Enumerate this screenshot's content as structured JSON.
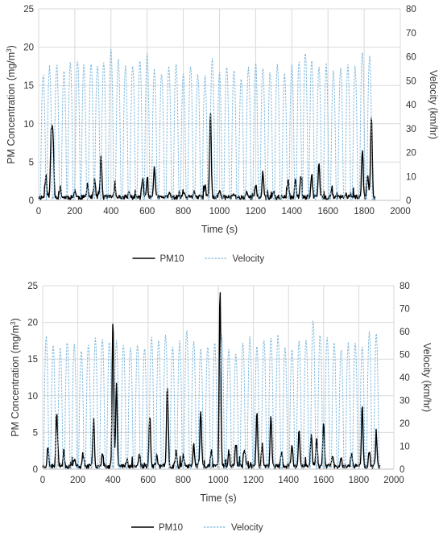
{
  "chart_data": [
    {
      "type": "line",
      "x_label": "Time (s)",
      "y_label_left_parts": [
        "PM Concentration (mg/m",
        "3",
        ")"
      ],
      "y_label_right": "Velocity (km/hr)",
      "x_range": [
        0,
        2000
      ],
      "x_ticks": [
        0,
        200,
        400,
        600,
        800,
        1000,
        1200,
        1400,
        1600,
        1800,
        2000
      ],
      "y_left_range": [
        0,
        25
      ],
      "y_left_ticks": [
        0,
        5,
        10,
        15,
        20,
        25
      ],
      "y_right_range": [
        0,
        80
      ],
      "y_right_ticks": [
        0,
        10,
        20,
        30,
        40,
        50,
        60,
        70,
        80
      ],
      "grid": true,
      "legend_position": "bottom",
      "series": [
        {
          "name": "PM10",
          "axis": "left",
          "color": "#000000",
          "style": "solid",
          "duration": 1860,
          "seed": 11,
          "peaks": [
            [
              40,
              3.0
            ],
            [
              70,
              8.7
            ],
            [
              80,
              7.2
            ],
            [
              120,
              1.2
            ],
            [
              200,
              1.0
            ],
            [
              270,
              1.7
            ],
            [
              310,
              2.3
            ],
            [
              345,
              5.5
            ],
            [
              420,
              1.2
            ],
            [
              500,
              0.8
            ],
            [
              575,
              2.5
            ],
            [
              600,
              2.3
            ],
            [
              640,
              4.2
            ],
            [
              720,
              0.5
            ],
            [
              800,
              0.8
            ],
            [
              860,
              0.9
            ],
            [
              920,
              1.5
            ],
            [
              950,
              11.2
            ],
            [
              1000,
              0.8
            ],
            [
              1080,
              0.5
            ],
            [
              1150,
              0.8
            ],
            [
              1200,
              1.6
            ],
            [
              1240,
              3.2
            ],
            [
              1300,
              0.7
            ],
            [
              1380,
              2.0
            ],
            [
              1420,
              2.5
            ],
            [
              1450,
              3.0
            ],
            [
              1510,
              3.0
            ],
            [
              1550,
              4.5
            ],
            [
              1620,
              1.0
            ],
            [
              1700,
              0.6
            ],
            [
              1790,
              6.0
            ],
            [
              1820,
              3.0
            ],
            [
              1840,
              10.6
            ]
          ]
        },
        {
          "name": "Velocity",
          "axis": "right",
          "color": "#7fb8dc",
          "style": "dashed",
          "duration": 1860,
          "seed": 5,
          "peaks": [
            [
              25,
              52
            ],
            [
              60,
              55
            ],
            [
              100,
              56
            ],
            [
              140,
              54
            ],
            [
              175,
              57
            ],
            [
              215,
              58
            ],
            [
              250,
              56
            ],
            [
              290,
              57
            ],
            [
              325,
              56
            ],
            [
              360,
              57
            ],
            [
              400,
              63
            ],
            [
              440,
              58
            ],
            [
              480,
              55
            ],
            [
              520,
              56
            ],
            [
              560,
              58
            ],
            [
              600,
              61
            ],
            [
              640,
              54
            ],
            [
              680,
              52
            ],
            [
              720,
              55
            ],
            [
              760,
              57
            ],
            [
              800,
              53
            ],
            [
              840,
              55
            ],
            [
              880,
              52
            ],
            [
              920,
              51
            ],
            [
              960,
              58
            ],
            [
              1000,
              53
            ],
            [
              1040,
              55
            ],
            [
              1080,
              54
            ],
            [
              1120,
              50
            ],
            [
              1160,
              55
            ],
            [
              1200,
              57
            ],
            [
              1240,
              55
            ],
            [
              1280,
              53
            ],
            [
              1320,
              56
            ],
            [
              1360,
              52
            ],
            [
              1400,
              56
            ],
            [
              1440,
              57
            ],
            [
              1475,
              61
            ],
            [
              1510,
              58
            ],
            [
              1550,
              55
            ],
            [
              1590,
              56
            ],
            [
              1630,
              53
            ],
            [
              1670,
              55
            ],
            [
              1710,
              56
            ],
            [
              1750,
              55
            ],
            [
              1790,
              61
            ],
            [
              1830,
              59
            ]
          ]
        }
      ]
    },
    {
      "type": "line",
      "x_label": "Time (s)",
      "y_label_left_parts": [
        "PM Concentration (mg/m",
        "3",
        ")"
      ],
      "y_label_right": "Velocity (km/hr)",
      "x_range": [
        0,
        2000
      ],
      "x_ticks": [
        0,
        200,
        400,
        600,
        800,
        1000,
        1200,
        1400,
        1600,
        1800,
        2000
      ],
      "y_left_range": [
        0,
        25
      ],
      "y_left_ticks": [
        0,
        5,
        10,
        15,
        20,
        25
      ],
      "y_right_range": [
        0,
        80
      ],
      "y_right_ticks": [
        0,
        10,
        20,
        30,
        40,
        50,
        60,
        70,
        80
      ],
      "grid": true,
      "legend_position": "bottom",
      "series": [
        {
          "name": "PM10",
          "axis": "left",
          "color": "#000000",
          "style": "solid",
          "duration": 1920,
          "seed": 23,
          "peaks": [
            [
              30,
              2.5
            ],
            [
              80,
              7.5
            ],
            [
              120,
              2.0
            ],
            [
              180,
              1.0
            ],
            [
              230,
              1.5
            ],
            [
              290,
              6.5
            ],
            [
              340,
              2.0
            ],
            [
              400,
              20.0
            ],
            [
              420,
              11.5
            ],
            [
              480,
              1.0
            ],
            [
              550,
              1.5
            ],
            [
              610,
              7.0
            ],
            [
              650,
              1.5
            ],
            [
              710,
              11.0
            ],
            [
              760,
              2.0
            ],
            [
              800,
              1.5
            ],
            [
              860,
              3.0
            ],
            [
              900,
              7.7
            ],
            [
              960,
              2.0
            ],
            [
              1010,
              24.3
            ],
            [
              1060,
              2.0
            ],
            [
              1100,
              3.0
            ],
            [
              1150,
              2.5
            ],
            [
              1220,
              7.5
            ],
            [
              1250,
              3.0
            ],
            [
              1300,
              7.0
            ],
            [
              1360,
              2.0
            ],
            [
              1420,
              3.0
            ],
            [
              1460,
              5.0
            ],
            [
              1530,
              4.5
            ],
            [
              1560,
              4.0
            ],
            [
              1600,
              6.0
            ],
            [
              1650,
              1.5
            ],
            [
              1700,
              1.0
            ],
            [
              1760,
              1.5
            ],
            [
              1820,
              8.5
            ],
            [
              1860,
              2.0
            ],
            [
              1900,
              4.0
            ]
          ]
        },
        {
          "name": "Velocity",
          "axis": "right",
          "color": "#7fb8dc",
          "style": "dashed",
          "duration": 1920,
          "seed": 9,
          "peaks": [
            [
              20,
              57
            ],
            [
              60,
              53
            ],
            [
              100,
              52
            ],
            [
              140,
              55
            ],
            [
              180,
              53
            ],
            [
              220,
              51
            ],
            [
              260,
              54
            ],
            [
              300,
              56
            ],
            [
              340,
              56
            ],
            [
              380,
              55
            ],
            [
              420,
              55
            ],
            [
              460,
              54
            ],
            [
              500,
              53
            ],
            [
              540,
              54
            ],
            [
              580,
              52
            ],
            [
              620,
              57
            ],
            [
              660,
              56
            ],
            [
              700,
              58
            ],
            [
              740,
              53
            ],
            [
              780,
              55
            ],
            [
              820,
              60
            ],
            [
              860,
              55
            ],
            [
              900,
              52
            ],
            [
              940,
              53
            ],
            [
              980,
              54
            ],
            [
              1020,
              57
            ],
            [
              1060,
              52
            ],
            [
              1100,
              50
            ],
            [
              1140,
              55
            ],
            [
              1180,
              57
            ],
            [
              1220,
              53
            ],
            [
              1260,
              56
            ],
            [
              1300,
              57
            ],
            [
              1340,
              58
            ],
            [
              1380,
              53
            ],
            [
              1420,
              52
            ],
            [
              1460,
              55
            ],
            [
              1500,
              56
            ],
            [
              1540,
              64
            ],
            [
              1580,
              58
            ],
            [
              1620,
              57
            ],
            [
              1660,
              55
            ],
            [
              1700,
              52
            ],
            [
              1740,
              54
            ],
            [
              1780,
              55
            ],
            [
              1820,
              53
            ],
            [
              1860,
              59
            ],
            [
              1900,
              58
            ]
          ]
        }
      ]
    }
  ]
}
